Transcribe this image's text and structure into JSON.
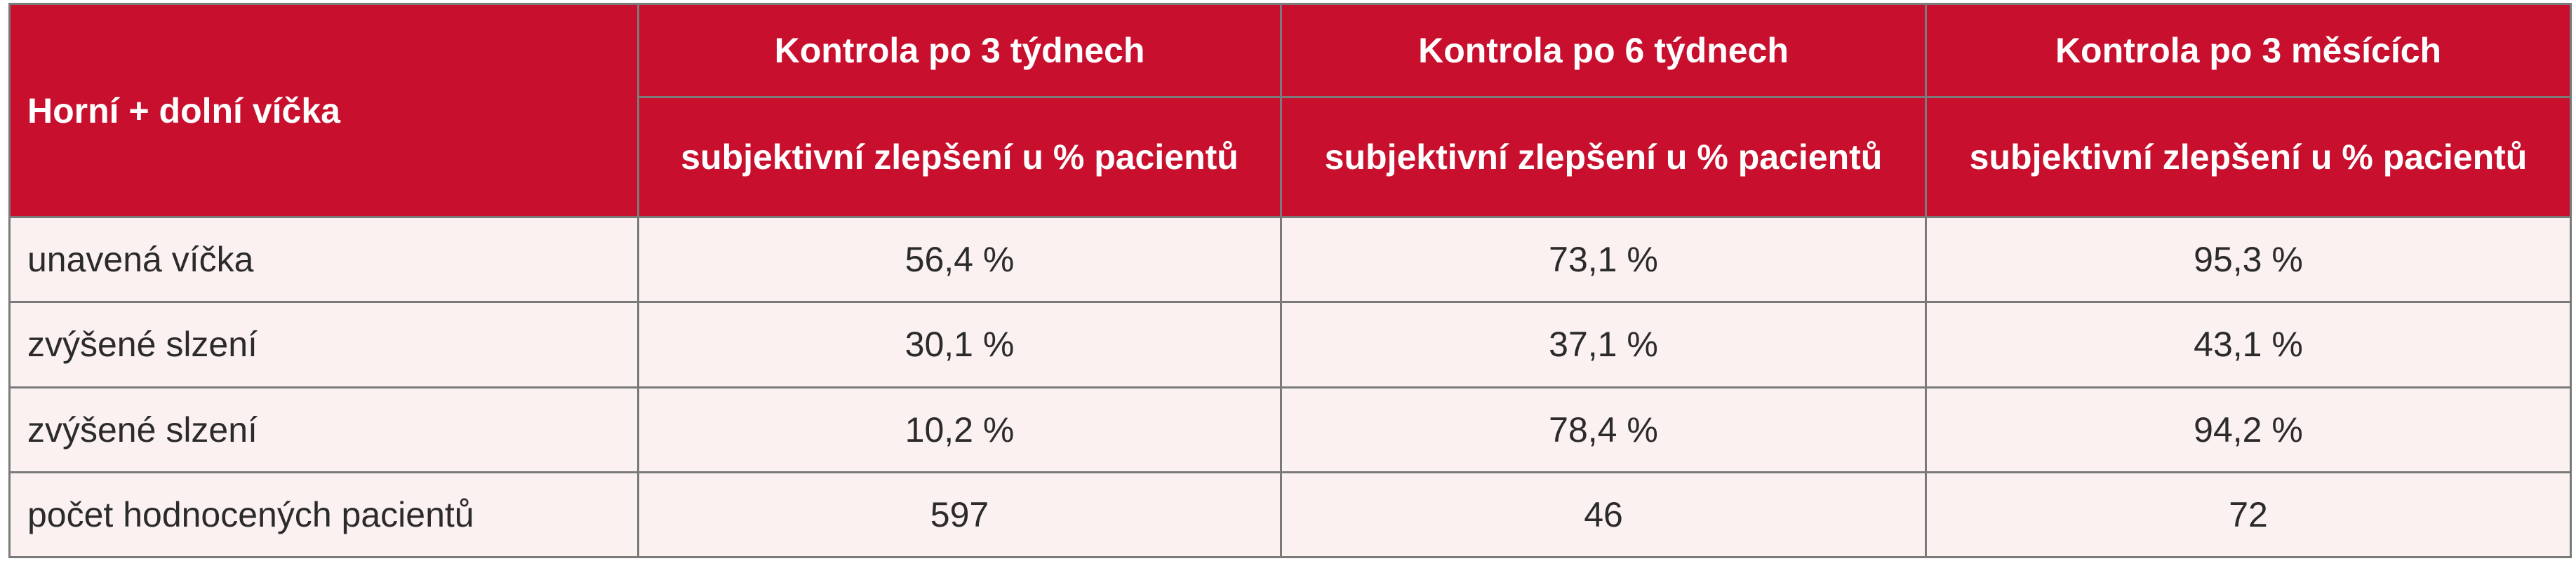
{
  "table": {
    "corner_label": "Horní + dolní víčka",
    "periods": [
      "Kontrola po 3 týdnech",
      "Kontrola po 6 týdnech",
      "Kontrola po 3 měsících"
    ],
    "measure_label": "subjektivní zlepšení u % pacientů",
    "colors": {
      "header_bg": "#c8102e",
      "header_text": "#ffffff",
      "body_bg": "#fbf1f1",
      "border": "#7a7a7a"
    },
    "rows": [
      {
        "label": "unavená víčka",
        "values": [
          "56,4 %",
          "73,1 %",
          "95,3 %"
        ]
      },
      {
        "label": "zvýšené slzení",
        "values": [
          "30,1 %",
          "37,1 %",
          "43,1 %"
        ]
      },
      {
        "label": "zvýšené slzení",
        "values": [
          "10,2 %",
          "78,4 %",
          "94,2 %"
        ]
      },
      {
        "label": "počet hodnocených pacientů",
        "values": [
          "597",
          "46",
          "72"
        ]
      }
    ]
  }
}
